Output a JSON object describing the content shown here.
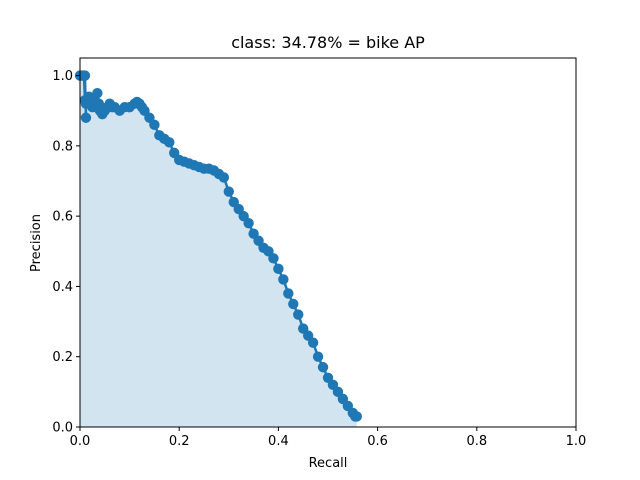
{
  "chart_data": {
    "type": "area",
    "title": "class: 34.78% = bike AP",
    "xlabel": "Recall",
    "ylabel": "Precision",
    "xlim": [
      0,
      1
    ],
    "ylim": [
      0,
      1.05
    ],
    "x_ticks": [
      "0.0",
      "0.2",
      "0.4",
      "0.6",
      "0.8",
      "1.0"
    ],
    "y_ticks": [
      "0.0",
      "0.2",
      "0.4",
      "0.6",
      "0.8",
      "1.0"
    ],
    "grid": false,
    "legend": "none",
    "colors": {
      "line": "#1f77b4",
      "fill": "#1f77b4",
      "fill_opacity": 0.2
    },
    "series": [
      {
        "x": [
          0.0,
          0.003,
          0.006,
          0.008,
          0.01,
          0.01,
          0.012,
          0.012,
          0.015,
          0.018,
          0.02,
          0.025,
          0.03,
          0.035,
          0.038,
          0.04,
          0.045,
          0.05,
          0.055,
          0.06,
          0.065,
          0.07,
          0.08,
          0.09,
          0.1,
          0.11,
          0.115,
          0.12,
          0.125,
          0.13,
          0.14,
          0.15,
          0.16,
          0.17,
          0.18,
          0.19,
          0.2,
          0.21,
          0.22,
          0.23,
          0.24,
          0.25,
          0.26,
          0.27,
          0.28,
          0.29,
          0.3,
          0.31,
          0.32,
          0.33,
          0.34,
          0.35,
          0.36,
          0.37,
          0.38,
          0.39,
          0.4,
          0.41,
          0.42,
          0.43,
          0.44,
          0.45,
          0.46,
          0.47,
          0.48,
          0.49,
          0.5,
          0.51,
          0.52,
          0.53,
          0.54,
          0.55,
          0.555,
          0.558
        ],
        "y": [
          1.0,
          1.0,
          1.0,
          1.0,
          0.93,
          1.0,
          0.88,
          0.92,
          0.93,
          0.94,
          0.93,
          0.91,
          0.93,
          0.95,
          0.92,
          0.9,
          0.89,
          0.9,
          0.91,
          0.92,
          0.91,
          0.91,
          0.9,
          0.91,
          0.91,
          0.92,
          0.925,
          0.92,
          0.91,
          0.9,
          0.88,
          0.86,
          0.83,
          0.82,
          0.81,
          0.78,
          0.76,
          0.755,
          0.75,
          0.745,
          0.74,
          0.735,
          0.735,
          0.73,
          0.72,
          0.71,
          0.67,
          0.64,
          0.62,
          0.6,
          0.58,
          0.55,
          0.53,
          0.51,
          0.5,
          0.48,
          0.45,
          0.42,
          0.38,
          0.35,
          0.32,
          0.28,
          0.26,
          0.24,
          0.2,
          0.17,
          0.14,
          0.12,
          0.1,
          0.08,
          0.06,
          0.04,
          0.03,
          0.03
        ]
      }
    ]
  }
}
